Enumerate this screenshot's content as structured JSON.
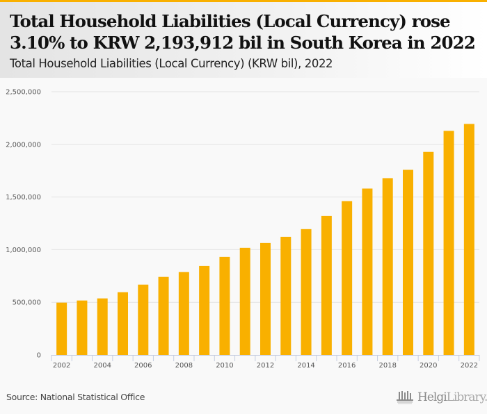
{
  "header": {
    "title": "Total Household Liabilities (Local Currency) rose 3.10% to KRW 2,193,912 bil in South Korea in 2022",
    "subtitle": "Total Household Liabilities (Local Currency) (KRW bil), 2022"
  },
  "footer": {
    "source": "Source: National Statistical Office",
    "logo_bold": "Helgi",
    "logo_light": "Library."
  },
  "colors": {
    "accent": "#f9b000",
    "bar": "#f9b000",
    "grid": "#e3e3e3",
    "axis": "#c5cde0"
  },
  "chart_data": {
    "type": "bar",
    "title": "Total Household Liabilities (Local Currency) (KRW bil), 2022",
    "xlabel": "",
    "ylabel": "",
    "categories": [
      "2002",
      "2003",
      "2004",
      "2005",
      "2006",
      "2007",
      "2008",
      "2009",
      "2010",
      "2011",
      "2012",
      "2013",
      "2014",
      "2015",
      "2016",
      "2017",
      "2018",
      "2019",
      "2020",
      "2021",
      "2022"
    ],
    "values": [
      497000,
      517000,
      537000,
      596000,
      668000,
      741000,
      787000,
      845000,
      931000,
      1017000,
      1063000,
      1122000,
      1195000,
      1320000,
      1461000,
      1580000,
      1679000,
      1758000,
      1928000,
      2127960,
      2193912
    ],
    "x_tick_labels": [
      "2002",
      "2004",
      "2006",
      "2008",
      "2010",
      "2012",
      "2014",
      "2016",
      "2018",
      "2020",
      "2022"
    ],
    "y_ticks": [
      0,
      500000,
      1000000,
      1500000,
      2000000,
      2500000
    ],
    "y_tick_labels": [
      "0",
      "500,000",
      "1,000,000",
      "1,500,000",
      "2,000,000",
      "2,500,000"
    ],
    "ylim": [
      0,
      2500000
    ],
    "grid": true,
    "legend": "none"
  }
}
